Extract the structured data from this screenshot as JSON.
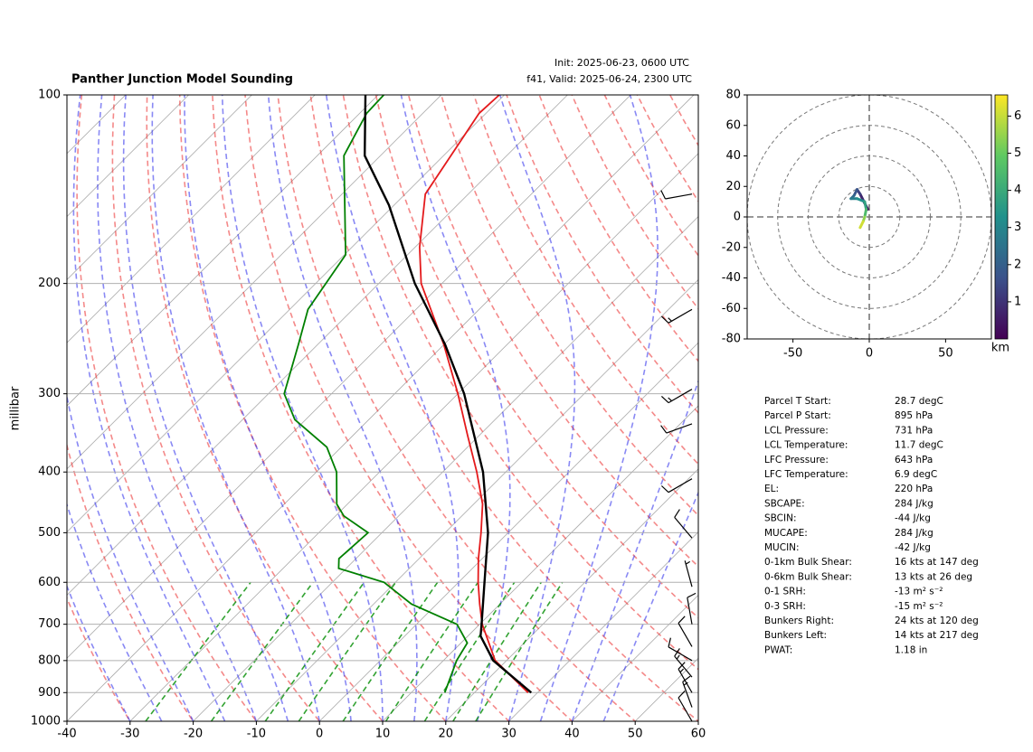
{
  "chart_data": [
    {
      "type": "skewt",
      "title": "Panther Junction Model Sounding",
      "init": "Init: 2025-06-23, 0600 UTC",
      "valid": "f41, Valid: 2025-06-24, 2300 UTC",
      "ylabel": "millibar",
      "xlim": [
        -40,
        60
      ],
      "xticks": [
        -40,
        -30,
        -20,
        -10,
        0,
        10,
        20,
        30,
        40,
        50,
        60
      ],
      "ylim": [
        1000,
        100
      ],
      "yticks": [
        100,
        200,
        300,
        400,
        500,
        600,
        700,
        800,
        900,
        1000
      ],
      "log_scale": true,
      "grid": true,
      "series": [
        {
          "name": "Temperature",
          "color": "#e41a1c",
          "pressure": [
            900,
            800,
            700,
            650,
            600,
            550,
            500,
            450,
            400,
            350,
            300,
            250,
            200,
            175,
            144,
            107,
            100
          ],
          "values": [
            28.5,
            18.2,
            10.4,
            6.8,
            3.1,
            -0.6,
            -4.3,
            -8.6,
            -14.6,
            -21.8,
            -30,
            -40.1,
            -53.3,
            -59.3,
            -66.8,
            -71.1,
            -70.8
          ]
        },
        {
          "name": "Dewpoint",
          "color": "#008000",
          "pressure": [
            900,
            800,
            750,
            700,
            650,
            600,
            570,
            550,
            500,
            470,
            450,
            400,
            365,
            330,
            300,
            250,
            220,
            180,
            125,
            107,
            100
          ],
          "values": [
            15.3,
            12.1,
            11,
            6.4,
            -4,
            -11.8,
            -21.2,
            -22.7,
            -22.2,
            -28.7,
            -31.7,
            -36.8,
            -42.3,
            -51.7,
            -57.5,
            -63.1,
            -67.1,
            -69.8,
            -85.8,
            -88.9,
            -89.1
          ]
        },
        {
          "name": "Parcel",
          "color": "#000000",
          "pressure": [
            900,
            800,
            731,
            700,
            600,
            500,
            400,
            300,
            250,
            200,
            150,
            125,
            100
          ],
          "values": [
            29,
            17.9,
            12,
            10.3,
            4.1,
            -3.2,
            -13.6,
            -29,
            -39.9,
            -54.3,
            -70.8,
            -82.5,
            -92
          ]
        }
      ],
      "barbs": {
        "pressure": [
          144,
          220,
          295,
          335,
          410,
          510,
          610,
          700,
          760,
          800,
          850,
          900,
          950,
          1000
        ],
        "direction": [
          260,
          240,
          240,
          250,
          240,
          320,
          345,
          350,
          330,
          300,
          320,
          330,
          340,
          330
        ],
        "speed": [
          10,
          15,
          15,
          10,
          10,
          10,
          5,
          10,
          10,
          10,
          15,
          15,
          15,
          10
        ]
      }
    },
    {
      "type": "hodograph",
      "xlim": [
        -80,
        80
      ],
      "xticks": [
        -50,
        0,
        50
      ],
      "ylim": [
        -80,
        80
      ],
      "yticks": [
        -80,
        -60,
        -40,
        -20,
        0,
        20,
        40,
        60,
        80
      ],
      "u": [
        -1,
        -3,
        -6,
        -8,
        -10,
        -12,
        -8,
        -3,
        -2,
        -3,
        -4,
        -6
      ],
      "v": [
        5,
        9,
        15,
        18,
        14,
        12,
        12,
        10,
        5,
        0,
        -3,
        -7
      ],
      "height": [
        0.1,
        0.5,
        1,
        1.5,
        2,
        2.5,
        3,
        3.5,
        4,
        5,
        5.8,
        6.4
      ],
      "clim": [
        0,
        6.57
      ],
      "cticks": [
        1,
        2,
        3,
        4,
        5,
        6
      ],
      "clabel": "km",
      "colormap": [
        "#440154",
        "#3b528b",
        "#21918c",
        "#5ec962",
        "#fde725"
      ]
    }
  ],
  "parameters": {
    "rows": [
      [
        "Parcel T Start:",
        "28.7 degC"
      ],
      [
        "Parcel P Start:",
        "895 hPa"
      ],
      [
        "LCL Pressure:",
        "731 hPa"
      ],
      [
        "LCL Temperature:",
        "11.7 degC"
      ],
      [
        "LFC Pressure:",
        "643 hPa"
      ],
      [
        "LFC Temperature:",
        "6.9 degC"
      ],
      [
        "EL:",
        "220 hPa"
      ],
      [
        "SBCAPE:",
        "284 J/kg"
      ],
      [
        "SBCIN:",
        "-44 J/kg"
      ],
      [
        "MUCAPE:",
        "284 J/kg"
      ],
      [
        "MUCIN:",
        "-42 J/kg"
      ],
      [
        "0-1km Bulk Shear:",
        "16 kts at 147 deg"
      ],
      [
        "0-6km Bulk Shear:",
        "13 kts at 26 deg"
      ],
      [
        "0-1 SRH:",
        "-13 m² s⁻²"
      ],
      [
        "0-3 SRH:",
        "-15 m² s⁻²"
      ],
      [
        "Bunkers Right:",
        "24 kts at 120 deg"
      ],
      [
        "Bunkers Left:",
        "14 kts at 217 deg"
      ],
      [
        "PWAT:",
        "1.18 in"
      ]
    ]
  }
}
